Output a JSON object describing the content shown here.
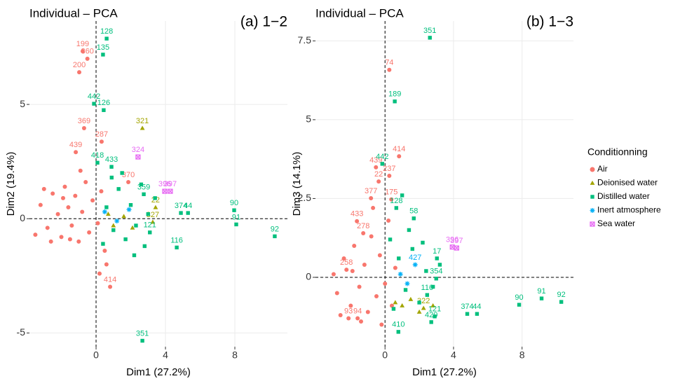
{
  "chart_data": [
    {
      "type": "scatter",
      "title": "Individual – PCA",
      "subtitle": "(a) 1−2",
      "x_label": "Dim1 (27.2%)",
      "y_label": "Dim2 (19.4%)",
      "xlim": [
        -3.84,
        11.03
      ],
      "ylim": [
        -5.6,
        8.65
      ],
      "xticks": [
        0,
        4,
        8
      ],
      "yticks": [
        -5,
        0,
        5
      ],
      "grid": true,
      "legend_title": "Conditionning",
      "legend": "right",
      "series": [
        {
          "name": "Air",
          "color": "#F8766D",
          "shape": "circle",
          "x": [
            -0.77,
            -0.5,
            -0.97,
            -0.69,
            0.32,
            -1.17,
            1.86,
            0.81,
            -3.2,
            -2.8,
            -2.5,
            -2.2,
            -2.0,
            -1.8,
            -1.6,
            -1.4,
            -1.2,
            -1.0,
            -0.8,
            -0.6,
            -0.4,
            -0.2,
            0.1,
            0.3,
            0.5,
            -3.5,
            -2.6,
            -1.9,
            -0.9,
            0.6,
            0.2,
            -1.5,
            -3.0
          ],
          "values": [
            7.33,
            7.0,
            6.41,
            3.96,
            3.37,
            2.91,
            1.6,
            -2.98,
            0.6,
            -0.4,
            1.1,
            0.2,
            -0.8,
            1.4,
            0.5,
            -0.3,
            1.0,
            -1.0,
            0.3,
            1.6,
            -0.6,
            0.8,
            -0.2,
            1.2,
            -1.4,
            -0.7,
            -1.0,
            0.9,
            2.1,
            -2.0,
            -2.4,
            -0.9,
            1.3
          ],
          "labels": [
            "199",
            "360",
            "200",
            "369",
            "287",
            "439",
            "370",
            "414",
            null,
            null,
            null,
            null,
            null,
            null,
            null,
            null,
            null,
            null,
            null,
            null,
            null,
            null,
            null,
            null,
            null,
            null,
            null,
            null,
            null,
            null,
            null,
            null,
            null
          ]
        },
        {
          "name": "Deionised water",
          "color": "#A3A500",
          "shape": "triangle",
          "x": [
            2.67,
            3.43,
            3.27,
            1.0,
            1.6,
            2.1,
            0.7
          ],
          "values": [
            3.96,
            0.49,
            -0.15,
            -0.3,
            0.1,
            -0.4,
            0.2
          ],
          "labels": [
            "321",
            "22",
            "327",
            null,
            null,
            null,
            null
          ]
        },
        {
          "name": "Distilled water",
          "color": "#00BF7D",
          "shape": "square",
          "x": [
            0.61,
            0.4,
            -0.12,
            0.44,
            0.89,
            4.89,
            5.3,
            7.96,
            8.08,
            10.3,
            4.65,
            2.67,
            0.08,
            2.75,
            3.1,
            0.6,
            1.0,
            1.3,
            1.7,
            2.0,
            2.3,
            2.6,
            3.0,
            0.4,
            1.5,
            2.8,
            3.4,
            0.9,
            2.2
          ],
          "values": [
            7.88,
            7.18,
            5.03,
            4.75,
            2.27,
            0.25,
            0.25,
            0.37,
            -0.25,
            -0.77,
            -1.26,
            -5.34,
            2.45,
            1.07,
            -0.6,
            0.5,
            -0.5,
            1.3,
            -0.9,
            0.6,
            -0.3,
            1.5,
            0.2,
            -1.1,
            2.0,
            -1.2,
            0.9,
            1.8,
            -1.6
          ],
          "labels": [
            "128",
            "135",
            "442",
            "126",
            "433",
            "374",
            "44",
            "90",
            "91",
            "92",
            "116",
            "351",
            "418",
            "359",
            "121",
            null,
            null,
            null,
            null,
            null,
            null,
            null,
            null,
            null,
            null,
            null,
            null,
            null,
            null
          ]
        },
        {
          "name": "Inert atmosphere",
          "color": "#00B0F6",
          "shape": "plus",
          "x": [
            0.5,
            1.2,
            1.9
          ],
          "values": [
            0.3,
            -0.1,
            0.4
          ],
          "labels": [
            null,
            null,
            null
          ]
        },
        {
          "name": "Sea water",
          "color": "#E76BF3",
          "shape": "boxx",
          "x": [
            2.42,
            3.96,
            4.28
          ],
          "values": [
            2.7,
            1.2,
            1.2
          ],
          "labels": [
            "324",
            "396",
            "397"
          ]
        }
      ]
    },
    {
      "type": "scatter",
      "title": "Individual – PCA",
      "subtitle": "(b) 1−3",
      "x_label": "Dim1 (27.2%)",
      "y_label": "Dim3 (14.1%)",
      "xlim": [
        -4.06,
        11.0
      ],
      "ylim": [
        -2.2,
        8.13
      ],
      "xticks": [
        0,
        4,
        8
      ],
      "yticks": [
        0,
        2.5,
        5,
        7.5
      ],
      "grid": true,
      "series": [
        {
          "name": "Air",
          "color": "#F8766D",
          "shape": "circle",
          "x": [
            0.25,
            0.82,
            -0.53,
            0.25,
            -0.37,
            0.37,
            -0.82,
            -1.27,
            -1.64,
            -2.13,
            -1.6,
            -2.25,
            -2.8,
            -2.4,
            -2.0,
            -1.8,
            -1.5,
            -1.2,
            -1.0,
            -0.8,
            -0.5,
            -0.3,
            0.0,
            0.2,
            0.4,
            -1.9,
            -2.6,
            -0.7,
            0.6,
            -1.4,
            -0.2,
            -3.0
          ],
          "values": [
            6.58,
            3.84,
            3.49,
            3.22,
            3.04,
            2.47,
            2.51,
            1.4,
            1.78,
            -1.3,
            -1.3,
            0.24,
            -0.5,
            0.6,
            -0.9,
            1.0,
            -0.3,
            0.4,
            -1.1,
            1.3,
            -0.6,
            0.7,
            -0.2,
            1.8,
            -0.9,
            0.2,
            -1.2,
            2.2,
            0.3,
            -1.4,
            -1.5,
            0.1
          ],
          "labels": [
            "74",
            "414",
            "439",
            "237",
            "22",
            "175",
            "377",
            "278",
            "433",
            "93",
            "94",
            "258",
            null,
            null,
            null,
            null,
            null,
            null,
            null,
            null,
            null,
            null,
            null,
            null,
            null,
            null,
            null,
            null,
            null,
            null,
            null,
            null
          ]
        },
        {
          "name": "Deionised water",
          "color": "#A3A500",
          "shape": "triangle",
          "x": [
            2.25,
            1.0,
            1.5,
            2.0,
            0.6,
            2.8
          ],
          "values": [
            -0.98,
            -0.9,
            -0.7,
            -1.1,
            -0.8,
            -0.9
          ],
          "labels": [
            "322",
            null,
            null,
            null,
            null,
            null
          ]
        },
        {
          "name": "Distilled water",
          "color": "#00BF7D",
          "shape": "square",
          "x": [
            2.62,
            0.57,
            -0.16,
            9.14,
            7.83,
            10.29,
            4.8,
            5.37,
            2.7,
            0.78,
            2.99,
            3.03,
            2.46,
            2.9,
            1.68,
            0.66,
            0.8,
            1.2,
            1.6,
            2.0,
            2.4,
            0.5,
            1.4,
            2.8,
            3.2,
            1.0,
            0.3,
            2.2
          ],
          "values": [
            7.6,
            5.58,
            3.6,
            -0.67,
            -0.87,
            -0.78,
            -1.16,
            -1.16,
            -1.42,
            -1.73,
            -0.04,
            0.6,
            -0.56,
            -1.24,
            1.87,
            2.2,
            0.6,
            -0.4,
            0.9,
            -0.8,
            0.2,
            -1.0,
            1.5,
            -0.3,
            0.4,
            2.6,
            1.2,
            1.1
          ],
          "labels": [
            "351",
            "189",
            "442",
            "91",
            "90",
            "92",
            "374",
            "44",
            "420",
            "410",
            "354",
            "17",
            "116",
            "121",
            "58",
            "128",
            null,
            null,
            null,
            null,
            null,
            null,
            null,
            null,
            null,
            null,
            null,
            null
          ]
        },
        {
          "name": "Inert atmosphere",
          "color": "#00B0F6",
          "shape": "plus",
          "x": [
            1.76,
            0.9,
            1.3
          ],
          "values": [
            0.4,
            0.1,
            -0.2
          ],
          "labels": [
            "427",
            null,
            null
          ]
        },
        {
          "name": "Sea water",
          "color": "#E76BF3",
          "shape": "boxx",
          "x": [
            3.93,
            4.18
          ],
          "values": [
            0.96,
            0.93
          ],
          "labels": [
            "396",
            "397"
          ]
        }
      ]
    }
  ]
}
